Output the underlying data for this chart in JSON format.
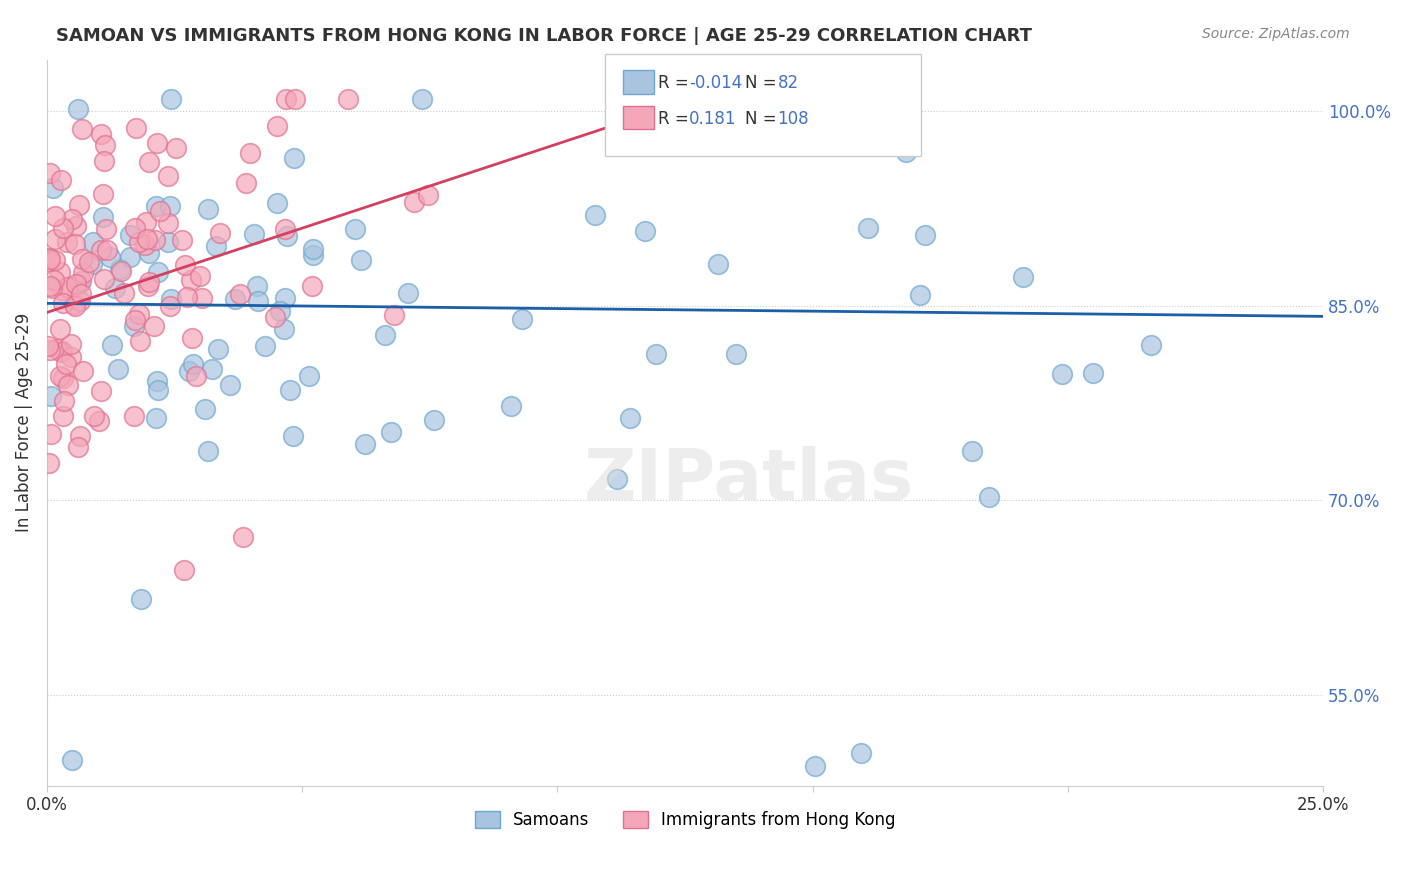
{
  "title": "SAMOAN VS IMMIGRANTS FROM HONG KONG IN LABOR FORCE | AGE 25-29 CORRELATION CHART",
  "source": "Source: ZipAtlas.com",
  "ylabel": "In Labor Force | Age 25-29",
  "xlim": [
    0.0,
    0.25
  ],
  "ylim": [
    0.48,
    1.04
  ],
  "yticks": [
    0.55,
    0.7,
    0.85,
    1.0
  ],
  "ytick_labels": [
    "55.0%",
    "70.0%",
    "85.0%",
    "100.0%"
  ],
  "xticks": [
    0.0,
    0.05,
    0.1,
    0.15,
    0.2,
    0.25
  ],
  "xtick_labels": [
    "0.0%",
    "",
    "",
    "",
    "",
    "25.0%"
  ],
  "blue_color": "#a8c4e0",
  "blue_edge": "#6fa8d0",
  "pink_color": "#f4a7b9",
  "pink_edge": "#e07090",
  "trend_blue_color": "#1a5fa8",
  "trend_pink_color": "#d44060",
  "legend_R1": "-0.014",
  "legend_N1": "82",
  "legend_R2": "0.181",
  "legend_N2": "108",
  "watermark": "ZIPatlas",
  "blue_N": 82,
  "pink_N": 108,
  "blue_intercept": 0.852,
  "blue_slope": -0.04,
  "pink_intercept": 0.845,
  "pink_slope": 1.3
}
